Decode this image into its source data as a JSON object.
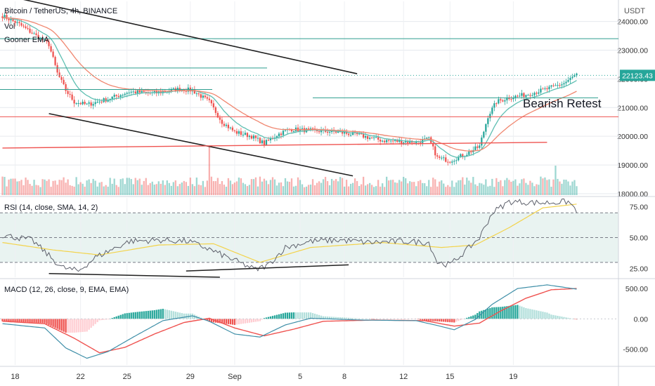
{
  "header": {
    "symbol_line": "Bitcoin / TetherUS, 4h, BINANCE",
    "vol_label": "Vol",
    "ema_label": "Gooner EMA",
    "currency": "USDT"
  },
  "annotation": {
    "text": "Bearish Retest"
  },
  "colors": {
    "up": "#26a69a",
    "down": "#ef5350",
    "pane_bg": "#e9f3f1",
    "price_tag": "#26a69a",
    "rsi_line": "#5d606b",
    "rsi_ma": "#f3d34a",
    "macd": "#3f8fa8",
    "signal": "#ef5350",
    "ema_fast": "#5fbfb2",
    "ema_slow": "#f08770"
  },
  "chart_data": [
    {
      "type": "candlestick",
      "title": "Bitcoin / TetherUS, 4h, BINANCE",
      "ylabel": "USDT",
      "ylim": [
        17950,
        24700
      ],
      "y_ticks": [
        "24000.00",
        "23000.00",
        "22000.00",
        "21000.00",
        "20000.00",
        "19000.00",
        "18000.00"
      ],
      "x_ticks": [
        "18",
        "22",
        "25",
        "29",
        "Sep",
        "5",
        "8",
        "12",
        "15",
        "19"
      ],
      "last_price": "22123.43",
      "close_path": [
        [
          0,
          24200
        ],
        [
          8,
          23900
        ],
        [
          16,
          23500
        ],
        [
          22,
          23200
        ],
        [
          26,
          22200
        ],
        [
          30,
          21600
        ],
        [
          34,
          21200
        ],
        [
          40,
          21100
        ],
        [
          50,
          21300
        ],
        [
          60,
          21550
        ],
        [
          72,
          21500
        ],
        [
          84,
          21650
        ],
        [
          90,
          21600
        ],
        [
          98,
          21200
        ],
        [
          104,
          20500
        ],
        [
          110,
          20150
        ],
        [
          118,
          20000
        ],
        [
          124,
          19750
        ],
        [
          130,
          20050
        ],
        [
          136,
          20250
        ],
        [
          146,
          20200
        ],
        [
          158,
          20150
        ],
        [
          168,
          20050
        ],
        [
          180,
          19850
        ],
        [
          196,
          19800
        ],
        [
          202,
          19900
        ],
        [
          206,
          19250
        ],
        [
          212,
          19150
        ],
        [
          220,
          19400
        ],
        [
          226,
          19650
        ],
        [
          230,
          20700
        ],
        [
          234,
          21200
        ],
        [
          240,
          21350
        ],
        [
          248,
          21450
        ],
        [
          258,
          21650
        ],
        [
          266,
          21850
        ],
        [
          272,
          22150
        ]
      ],
      "volume_pattern": "alternating up/down volume bars, spikes near candle 98 and candle 262"
    },
    {
      "type": "line",
      "title": "RSI (14, close, SMA, 14, 2)",
      "ylim": [
        18,
        82
      ],
      "y_ticks": [
        "75.00",
        "50.00",
        "25.00"
      ],
      "band": [
        30,
        70
      ],
      "rsi_path": [
        [
          0,
          52
        ],
        [
          14,
          48
        ],
        [
          28,
          26
        ],
        [
          36,
          23
        ],
        [
          44,
          34
        ],
        [
          60,
          47
        ],
        [
          74,
          48
        ],
        [
          88,
          47
        ],
        [
          96,
          42
        ],
        [
          104,
          36
        ],
        [
          112,
          30
        ],
        [
          120,
          24
        ],
        [
          126,
          28
        ],
        [
          134,
          42
        ],
        [
          146,
          47
        ],
        [
          160,
          48
        ],
        [
          174,
          46
        ],
        [
          190,
          47
        ],
        [
          202,
          46
        ],
        [
          206,
          30
        ],
        [
          212,
          28
        ],
        [
          220,
          40
        ],
        [
          226,
          50
        ],
        [
          232,
          70
        ],
        [
          240,
          79
        ],
        [
          256,
          78
        ],
        [
          268,
          79
        ],
        [
          272,
          72
        ]
      ],
      "ma_path": [
        [
          0,
          46
        ],
        [
          24,
          40
        ],
        [
          46,
          36
        ],
        [
          74,
          44
        ],
        [
          100,
          45
        ],
        [
          122,
          30
        ],
        [
          146,
          42
        ],
        [
          180,
          46
        ],
        [
          208,
          42
        ],
        [
          224,
          44
        ],
        [
          240,
          58
        ],
        [
          256,
          74
        ],
        [
          272,
          77
        ]
      ]
    },
    {
      "type": "line",
      "title": "MACD (12, 26, close, 9, EMA, EMA)",
      "ylim": [
        -760,
        640
      ],
      "y_ticks": [
        "500.00",
        "0.00",
        "-500.00"
      ],
      "macd_path": [
        [
          0,
          -80
        ],
        [
          20,
          -150
        ],
        [
          30,
          -480
        ],
        [
          40,
          -650
        ],
        [
          50,
          -540
        ],
        [
          62,
          -300
        ],
        [
          76,
          -30
        ],
        [
          90,
          50
        ],
        [
          98,
          -40
        ],
        [
          110,
          -250
        ],
        [
          122,
          -300
        ],
        [
          134,
          -100
        ],
        [
          146,
          10
        ],
        [
          170,
          -20
        ],
        [
          196,
          -30
        ],
        [
          206,
          -110
        ],
        [
          214,
          -180
        ],
        [
          224,
          -10
        ],
        [
          232,
          240
        ],
        [
          244,
          500
        ],
        [
          258,
          560
        ],
        [
          272,
          490
        ]
      ],
      "signal_path": [
        [
          0,
          -40
        ],
        [
          20,
          -80
        ],
        [
          34,
          -320
        ],
        [
          46,
          -560
        ],
        [
          58,
          -470
        ],
        [
          72,
          -250
        ],
        [
          86,
          -60
        ],
        [
          98,
          10
        ],
        [
          110,
          -150
        ],
        [
          124,
          -280
        ],
        [
          138,
          -170
        ],
        [
          152,
          -40
        ],
        [
          176,
          -20
        ],
        [
          200,
          -30
        ],
        [
          214,
          -120
        ],
        [
          226,
          -70
        ],
        [
          236,
          130
        ],
        [
          248,
          340
        ],
        [
          260,
          480
        ],
        [
          272,
          500
        ]
      ]
    }
  ],
  "date_axis": {
    "ticks": [
      {
        "label": "18",
        "index": 6
      },
      {
        "label": "22",
        "index": 37
      },
      {
        "label": "25",
        "index": 59
      },
      {
        "label": "29",
        "index": 89
      },
      {
        "label": "Sep",
        "index": 110
      },
      {
        "label": "5",
        "index": 141
      },
      {
        "label": "8",
        "index": 162
      },
      {
        "label": "12",
        "index": 190
      },
      {
        "label": "15",
        "index": 212
      },
      {
        "label": "19",
        "index": 242
      }
    ]
  },
  "drawings": {
    "horizontal_price_levels": [
      23400,
      22380,
      21630,
      21340,
      20680
    ],
    "trendlines_price": [
      {
        "from": [
          0,
          24930
        ],
        "to": [
          168,
          22180
        ],
        "color": "#1f1f1f"
      },
      {
        "from": [
          22,
          20790
        ],
        "to": [
          166,
          18620
        ],
        "color": "#1f1f1f"
      },
      {
        "from": [
          0,
          19590
        ],
        "to": [
          258,
          19790
        ],
        "color": "#ef5350"
      }
    ],
    "trendlines_rsi": [
      {
        "from": [
          22,
          21
        ],
        "to": [
          103,
          18
        ],
        "color": "#1f1f1f"
      },
      {
        "from": [
          87,
          23
        ],
        "to": [
          164,
          28
        ],
        "color": "#1f1f1f"
      }
    ]
  }
}
